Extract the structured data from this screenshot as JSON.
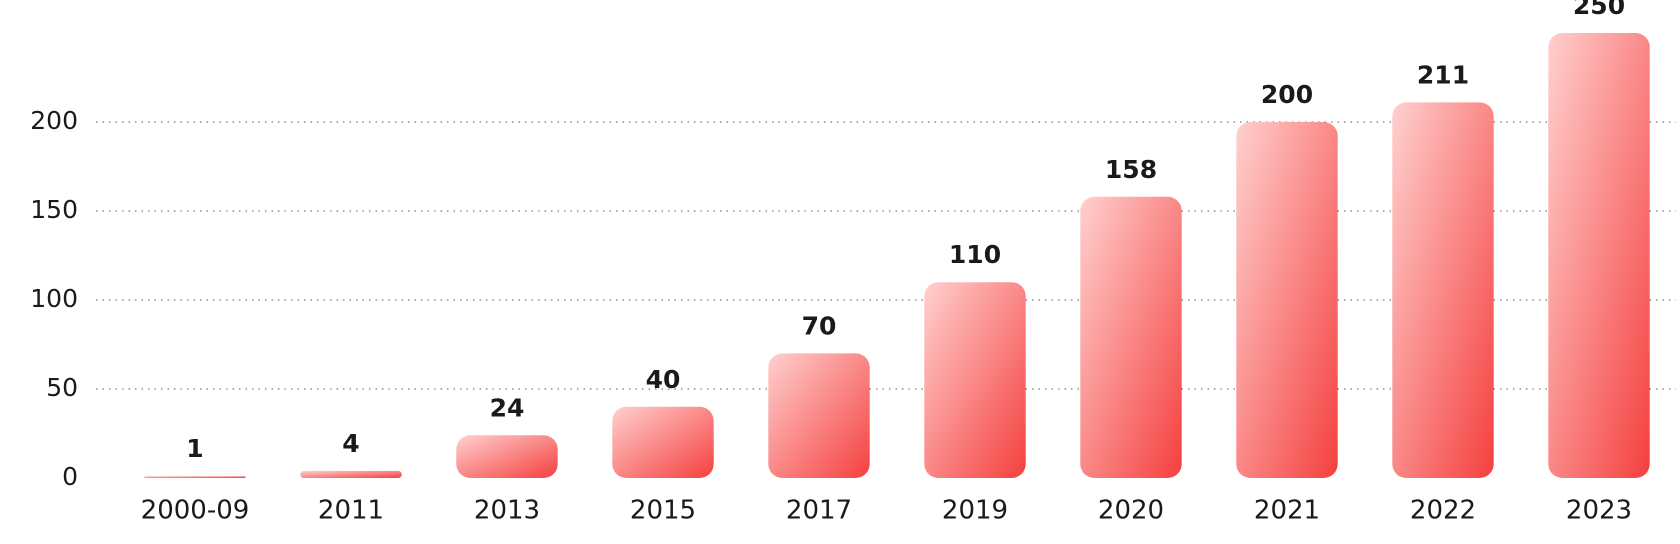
{
  "chart_data": {
    "type": "bar",
    "categories": [
      "2000-09",
      "2011",
      "2013",
      "2015",
      "2017",
      "2019",
      "2020",
      "2021",
      "2022",
      "2023"
    ],
    "values": [
      1,
      4,
      24,
      40,
      70,
      110,
      158,
      200,
      211,
      250
    ],
    "color": "#f4403e",
    "ylim": [
      0,
      250
    ],
    "yticks": [
      0,
      50,
      100,
      150,
      200
    ],
    "grid": true
  }
}
